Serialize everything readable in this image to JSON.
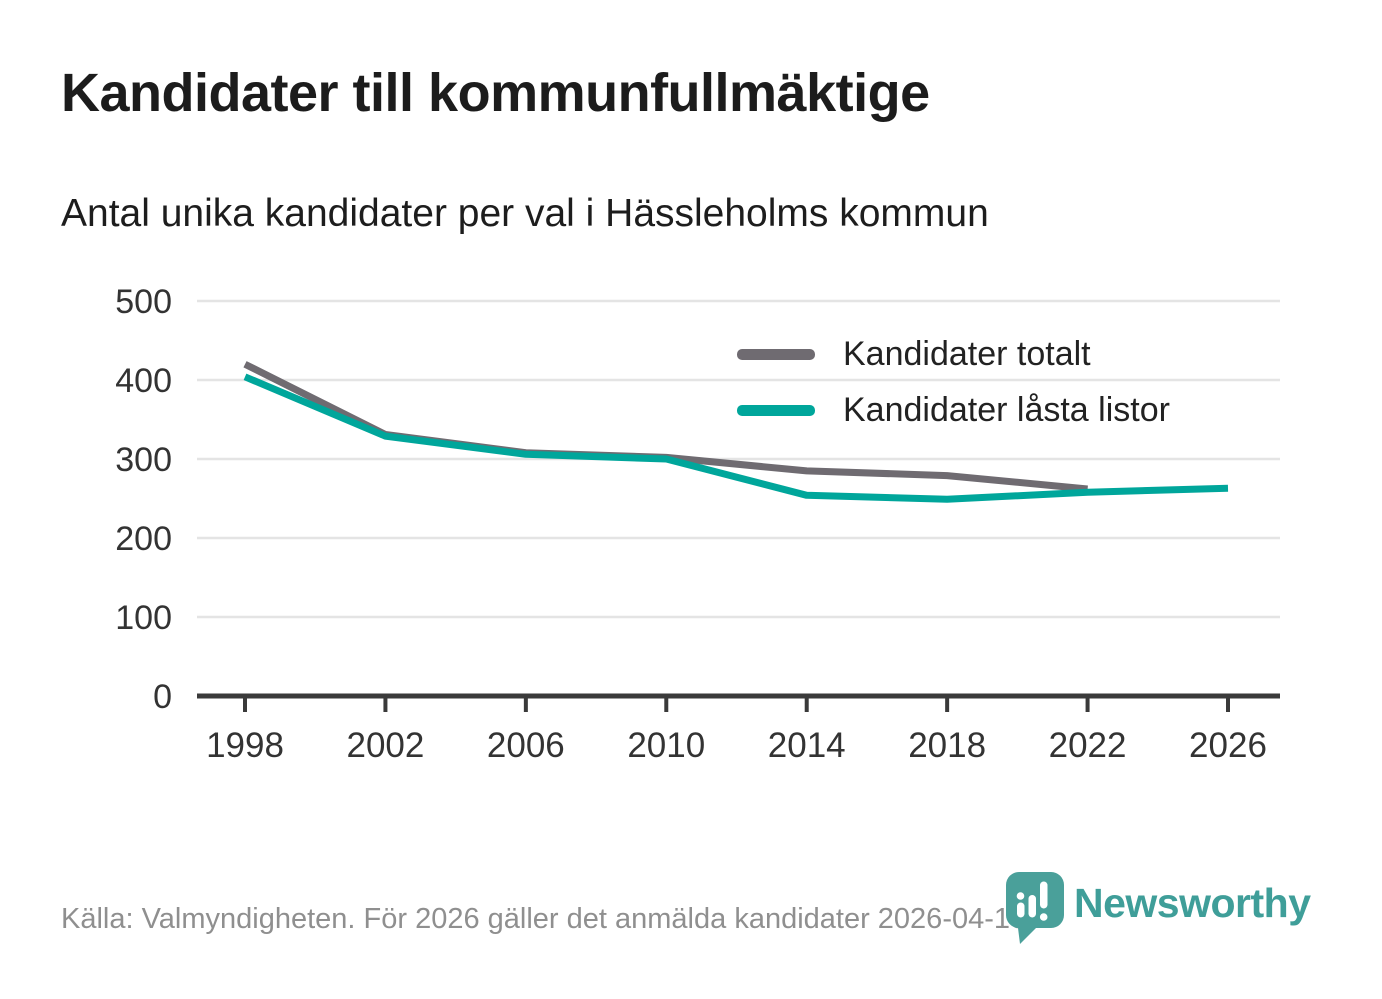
{
  "header": {
    "title": "Kandidater till kommunfullmäktige",
    "subtitle": "Antal unika kandidater per val i Hässleholms kommun"
  },
  "chart_data": {
    "type": "line",
    "title": "Kandidater till kommunfullmäktige",
    "subtitle": "Antal unika kandidater per val i Hässleholms kommun",
    "xlabel": "",
    "ylabel": "",
    "xlim": [
      1998,
      2026
    ],
    "ylim": [
      0,
      500
    ],
    "xticks": [
      1998,
      2002,
      2006,
      2010,
      2014,
      2018,
      2022,
      2026
    ],
    "yticks": [
      0,
      100,
      200,
      300,
      400,
      500
    ],
    "grid": "horizontal",
    "legend_position": "inside-top-right",
    "series": [
      {
        "name": "Kandidater totalt",
        "color": "#6f6b71",
        "x": [
          1998,
          2002,
          2006,
          2010,
          2014,
          2018,
          2022
        ],
        "values": [
          420,
          331,
          308,
          302,
          285,
          279,
          262
        ]
      },
      {
        "name": "Kandidater låsta listor",
        "color": "#00a69b",
        "x": [
          1998,
          2002,
          2006,
          2010,
          2014,
          2018,
          2022,
          2026
        ],
        "values": [
          404,
          329,
          306,
          300,
          254,
          249,
          258,
          263
        ]
      }
    ]
  },
  "footer": {
    "source": "Källa: Valmyndigheten. För 2026 gäller det anmälda kandidater 2026-04-10."
  },
  "branding": {
    "name": "Newsworthy",
    "color": "#3f9e99"
  }
}
